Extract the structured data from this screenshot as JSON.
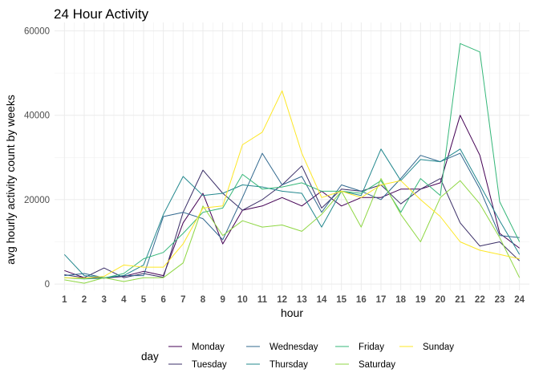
{
  "chart_data": {
    "type": "line",
    "title": "24 Hour Activity",
    "xlabel": "hour",
    "ylabel": "avg hourly activity count by weeks",
    "x": [
      1,
      2,
      3,
      4,
      5,
      6,
      7,
      8,
      9,
      10,
      11,
      12,
      13,
      14,
      15,
      16,
      17,
      18,
      19,
      20,
      21,
      22,
      23,
      24
    ],
    "xlim": [
      0.5,
      24.5
    ],
    "ylim": [
      -1500,
      62000
    ],
    "yticks": [
      0,
      20000,
      40000,
      60000
    ],
    "ytick_labels": [
      "0",
      "20000",
      "40000",
      "60000"
    ],
    "grid": true,
    "legend_title": "day",
    "legend_position": "bottom",
    "series": [
      {
        "name": "Monday",
        "color": "#440154",
        "values": [
          3200,
          1500,
          1400,
          1800,
          3000,
          2000,
          14500,
          21500,
          9500,
          17500,
          18500,
          20500,
          18500,
          22000,
          18500,
          20500,
          20500,
          22500,
          22500,
          24000,
          40000,
          30500,
          12000,
          8500
        ]
      },
      {
        "name": "Tuesday",
        "color": "#3b2f68",
        "values": [
          2200,
          1500,
          3800,
          1500,
          2500,
          1600,
          17000,
          27000,
          21500,
          17500,
          20000,
          23500,
          28000,
          18000,
          22500,
          22000,
          23500,
          19000,
          22500,
          25000,
          14500,
          9000,
          10000,
          5500
        ]
      },
      {
        "name": "Wednesday",
        "color": "#31688e",
        "values": [
          2000,
          2500,
          1500,
          2000,
          2000,
          16000,
          17000,
          15500,
          10500,
          20500,
          31000,
          23500,
          25500,
          17000,
          23500,
          22000,
          20000,
          25000,
          30500,
          29000,
          31000,
          22500,
          11500,
          11000
        ]
      },
      {
        "name": "Thursday",
        "color": "#23888e",
        "values": [
          7000,
          2000,
          1500,
          2000,
          4500,
          16500,
          25500,
          21000,
          21500,
          23500,
          23000,
          22000,
          21500,
          13500,
          22000,
          21000,
          32000,
          24500,
          29500,
          29000,
          32000,
          23500,
          15000,
          7000
        ]
      },
      {
        "name": "Friday",
        "color": "#35b779",
        "values": [
          1500,
          1200,
          1400,
          2500,
          6000,
          7500,
          12000,
          17000,
          18000,
          26000,
          22500,
          23000,
          24000,
          22000,
          22000,
          21500,
          24500,
          17000,
          25000,
          21000,
          57000,
          55000,
          19500,
          10000
        ]
      },
      {
        "name": "Saturday",
        "color": "#8fd744",
        "values": [
          1000,
          200,
          1500,
          600,
          1500,
          1500,
          5000,
          18500,
          11500,
          15000,
          13500,
          14000,
          12500,
          16500,
          22000,
          13500,
          25000,
          16500,
          10000,
          20500,
          24500,
          19000,
          11000,
          1500
        ]
      },
      {
        "name": "Sunday",
        "color": "#fde725",
        "values": [
          1500,
          1400,
          1800,
          4500,
          4000,
          4000,
          9500,
          18000,
          18500,
          33000,
          36000,
          45800,
          31000,
          20500,
          22000,
          20500,
          23500,
          24500,
          20000,
          16000,
          10000,
          8000,
          7000,
          6000
        ]
      }
    ]
  }
}
